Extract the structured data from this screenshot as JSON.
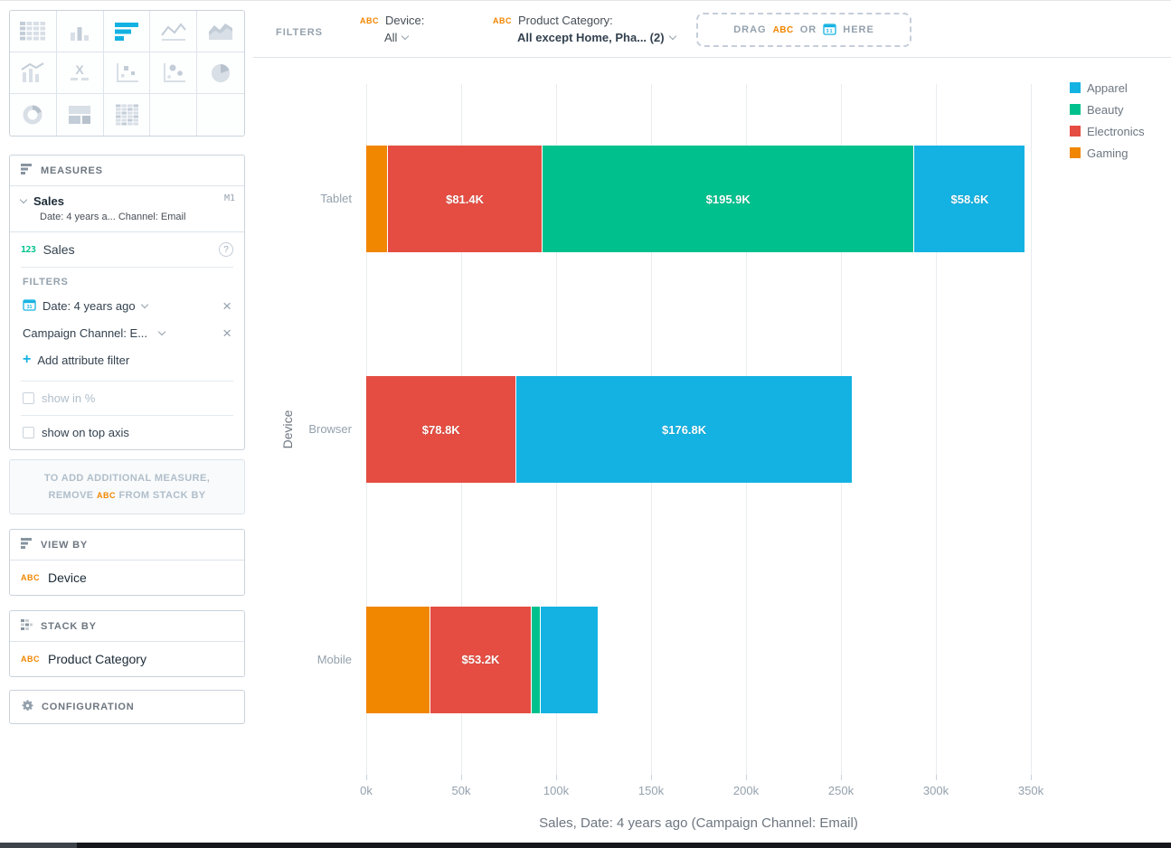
{
  "colors": {
    "accent_blue": "#14B2E2",
    "accent_orange": "#F18600",
    "accent_green": "#00C18D",
    "accent_red": "#E54D42"
  },
  "visualization_picker": {
    "active": "bar",
    "cells": [
      "table",
      "column",
      "bar",
      "line",
      "area",
      "combo",
      "headline",
      "scatter",
      "bubble",
      "pie",
      "donut",
      "treemap",
      "heatmap",
      "",
      ""
    ]
  },
  "measures_bucket": {
    "title": "MEASURES",
    "measure_card": {
      "name": "Sales",
      "badge": "M1",
      "subtitle": "Date: 4 years a... Channel: Email"
    },
    "fact_row": {
      "type_icon": "123",
      "label": "Sales"
    },
    "filters_label": "FILTERS",
    "date_filter": "Date: 4 years ago",
    "attribute_filter": "Campaign Channel: E...",
    "add_filter_label": "Add attribute filter",
    "show_in_percent": "show in %",
    "show_on_top_axis": "show on top axis"
  },
  "hint": {
    "line1": "TO ADD ADDITIONAL MEASURE,",
    "line2_prefix": "REMOVE",
    "badge": "ABC",
    "line2_suffix": "FROM STACK BY"
  },
  "view_by_bucket": {
    "title": "VIEW BY",
    "item": {
      "badge": "ABC",
      "label": "Device"
    }
  },
  "stack_by_bucket": {
    "title": "STACK BY",
    "item": {
      "badge": "ABC",
      "label": "Product Category"
    }
  },
  "configuration": {
    "title": "CONFIGURATION"
  },
  "filter_bar": {
    "label": "FILTERS",
    "filters": [
      {
        "badge": "ABC",
        "title": "Device:",
        "value": "All",
        "bold": false
      },
      {
        "badge": "ABC",
        "title": "Product Category:",
        "value": "All except Home, Pha... (2)",
        "bold": true
      }
    ],
    "drop_zone": {
      "drag": "DRAG",
      "abc": "ABC",
      "or": "OR",
      "here": "HERE"
    }
  },
  "chart_data": {
    "type": "bar",
    "orientation": "horizontal",
    "stacked": true,
    "categories": [
      "Tablet",
      "Browser",
      "Mobile"
    ],
    "series": [
      {
        "name": "Gaming",
        "color": "#F18600",
        "values_k": [
          11.0,
          0,
          33.4
        ],
        "labels": [
          "",
          "",
          ""
        ]
      },
      {
        "name": "Electronics",
        "color": "#E54D42",
        "values_k": [
          81.4,
          78.8,
          53.2
        ],
        "labels": [
          "$81.4K",
          "$78.8K",
          "$53.2K"
        ]
      },
      {
        "name": "Beauty",
        "color": "#00C18D",
        "values_k": [
          195.9,
          0,
          4.6
        ],
        "labels": [
          "$195.9K",
          "",
          ""
        ]
      },
      {
        "name": "Apparel",
        "color": "#14B2E2",
        "values_k": [
          58.6,
          176.8,
          30.8
        ],
        "labels": [
          "$58.6K",
          "$176.8K",
          ""
        ]
      }
    ],
    "legend": [
      "Apparel",
      "Beauty",
      "Electronics",
      "Gaming"
    ],
    "legend_position": "top-right",
    "xlim_k": [
      0,
      350
    ],
    "x_tick_values_k": [
      0,
      50,
      100,
      150,
      200,
      250,
      300,
      350
    ],
    "x_tick_labels": [
      "0k",
      "50k",
      "100k",
      "150k",
      "200k",
      "250k",
      "300k",
      "350k"
    ],
    "xlabel": "Sales, Date: 4 years ago (Campaign Channel: Email)",
    "ylabel": "Device",
    "grid": true
  }
}
